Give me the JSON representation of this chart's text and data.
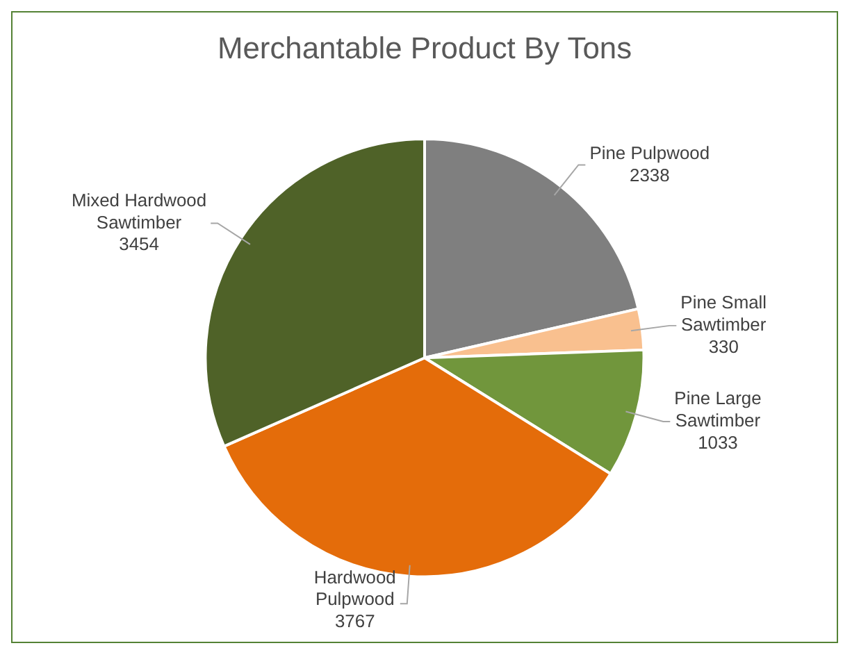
{
  "chart_data": {
    "type": "pie",
    "title": "Merchantable Product By Tons",
    "categories": [
      "Pine Pulpwood",
      "Pine Small Sawtimber",
      "Pine Large Sawtimber",
      "Hardwood Pulpwood",
      "Mixed Hardwood Sawtimber"
    ],
    "values": [
      2338,
      330,
      1033,
      3767,
      3454
    ],
    "colors": [
      "#7f7f7f",
      "#f9c08f",
      "#71963c",
      "#e46c0a",
      "#4f6228"
    ],
    "data_labels": true,
    "legend": false
  }
}
